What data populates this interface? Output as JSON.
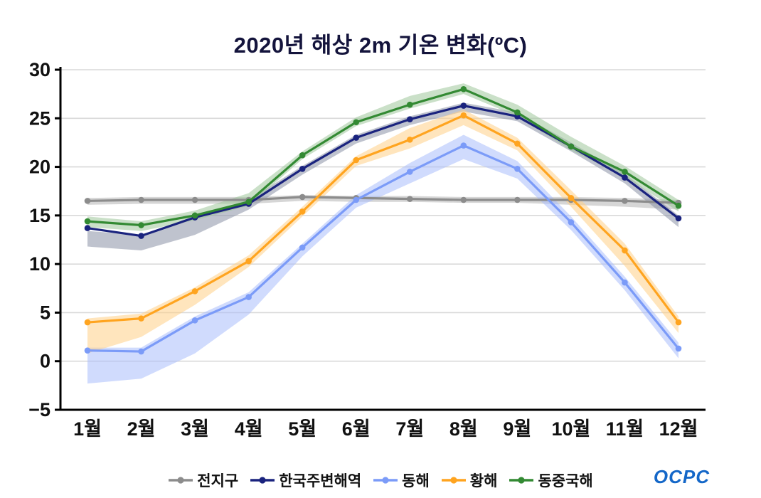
{
  "branding": {
    "logo_text": "OCPC"
  },
  "chart_data": {
    "type": "line",
    "title": "2020년 해상 2m 기온 변화(ºC)",
    "xlabel": "",
    "ylabel": "",
    "categories": [
      "1월",
      "2월",
      "3월",
      "4월",
      "5월",
      "6월",
      "7월",
      "8월",
      "9월",
      "10월",
      "11월",
      "12월"
    ],
    "ylim": [
      -5,
      30
    ],
    "y_ticks": [
      -5,
      0,
      5,
      10,
      15,
      20,
      25,
      30
    ],
    "y_tick_labels": [
      "−5",
      "0",
      "5",
      "10",
      "15",
      "20",
      "25",
      "30"
    ],
    "grid": true,
    "legend_position": "bottom",
    "series": [
      {
        "name": "전지구",
        "color": "#8c8c8c",
        "band_color": "#b5b5b5",
        "values": [
          16.5,
          16.6,
          16.6,
          16.6,
          16.9,
          16.8,
          16.7,
          16.6,
          16.6,
          16.6,
          16.5,
          16.3
        ],
        "band_lower": [
          16.1,
          16.2,
          16.2,
          16.2,
          16.5,
          16.4,
          16.4,
          16.3,
          16.3,
          16.1,
          15.9,
          15.6
        ],
        "band_upper": [
          16.8,
          16.9,
          16.9,
          16.9,
          17.1,
          17.0,
          17.0,
          16.9,
          16.9,
          16.9,
          16.8,
          16.6
        ]
      },
      {
        "name": "한국주변해역",
        "color": "#1a237e",
        "band_color": "#8a91a6",
        "values": [
          13.7,
          12.9,
          14.8,
          16.2,
          19.8,
          23.0,
          24.9,
          26.3,
          25.2,
          22.1,
          18.9,
          14.7
        ],
        "band_lower": [
          11.8,
          11.4,
          13.0,
          15.6,
          19.2,
          22.4,
          24.3,
          25.7,
          24.7,
          21.6,
          18.3,
          13.8
        ],
        "band_upper": [
          13.4,
          13.0,
          14.9,
          16.6,
          20.1,
          23.3,
          25.2,
          26.6,
          25.6,
          22.5,
          19.3,
          15.0
        ]
      },
      {
        "name": "동해",
        "color": "#7b9bf8",
        "band_color": "#a9bdfb",
        "values": [
          1.1,
          1.0,
          4.2,
          6.6,
          11.7,
          16.6,
          19.5,
          22.2,
          19.8,
          14.3,
          8.1,
          1.3
        ],
        "band_lower": [
          -2.3,
          -1.8,
          0.8,
          4.8,
          10.8,
          15.8,
          18.3,
          20.8,
          18.8,
          13.5,
          7.3,
          0.3
        ],
        "band_upper": [
          1.4,
          1.4,
          4.6,
          7.1,
          12.1,
          17.1,
          20.4,
          23.3,
          20.6,
          14.9,
          8.7,
          1.9
        ]
      },
      {
        "name": "황해",
        "color": "#ffa41f",
        "band_color": "#ffcf86",
        "values": [
          4.0,
          4.4,
          7.2,
          10.3,
          15.4,
          20.7,
          22.8,
          25.3,
          22.4,
          16.8,
          11.4,
          4.0
        ],
        "band_lower": [
          0.8,
          2.5,
          5.8,
          9.7,
          14.9,
          20.1,
          21.9,
          24.3,
          21.7,
          15.9,
          9.8,
          2.9
        ],
        "band_upper": [
          4.4,
          4.9,
          7.6,
          10.9,
          15.9,
          21.1,
          24.0,
          25.9,
          23.0,
          17.6,
          12.1,
          4.6
        ]
      },
      {
        "name": "동중국해",
        "color": "#338a33",
        "band_color": "#9ec79b",
        "values": [
          14.4,
          14.0,
          15.0,
          16.4,
          21.2,
          24.6,
          26.4,
          28.0,
          25.6,
          22.1,
          19.5,
          16.0
        ],
        "band_lower": [
          13.8,
          13.4,
          14.5,
          16.0,
          20.8,
          24.2,
          26.0,
          27.5,
          25.2,
          21.7,
          19.0,
          15.4
        ],
        "band_upper": [
          14.9,
          14.4,
          15.5,
          17.3,
          21.6,
          25.1,
          27.3,
          28.6,
          26.4,
          23.1,
          20.1,
          16.6
        ]
      }
    ]
  }
}
